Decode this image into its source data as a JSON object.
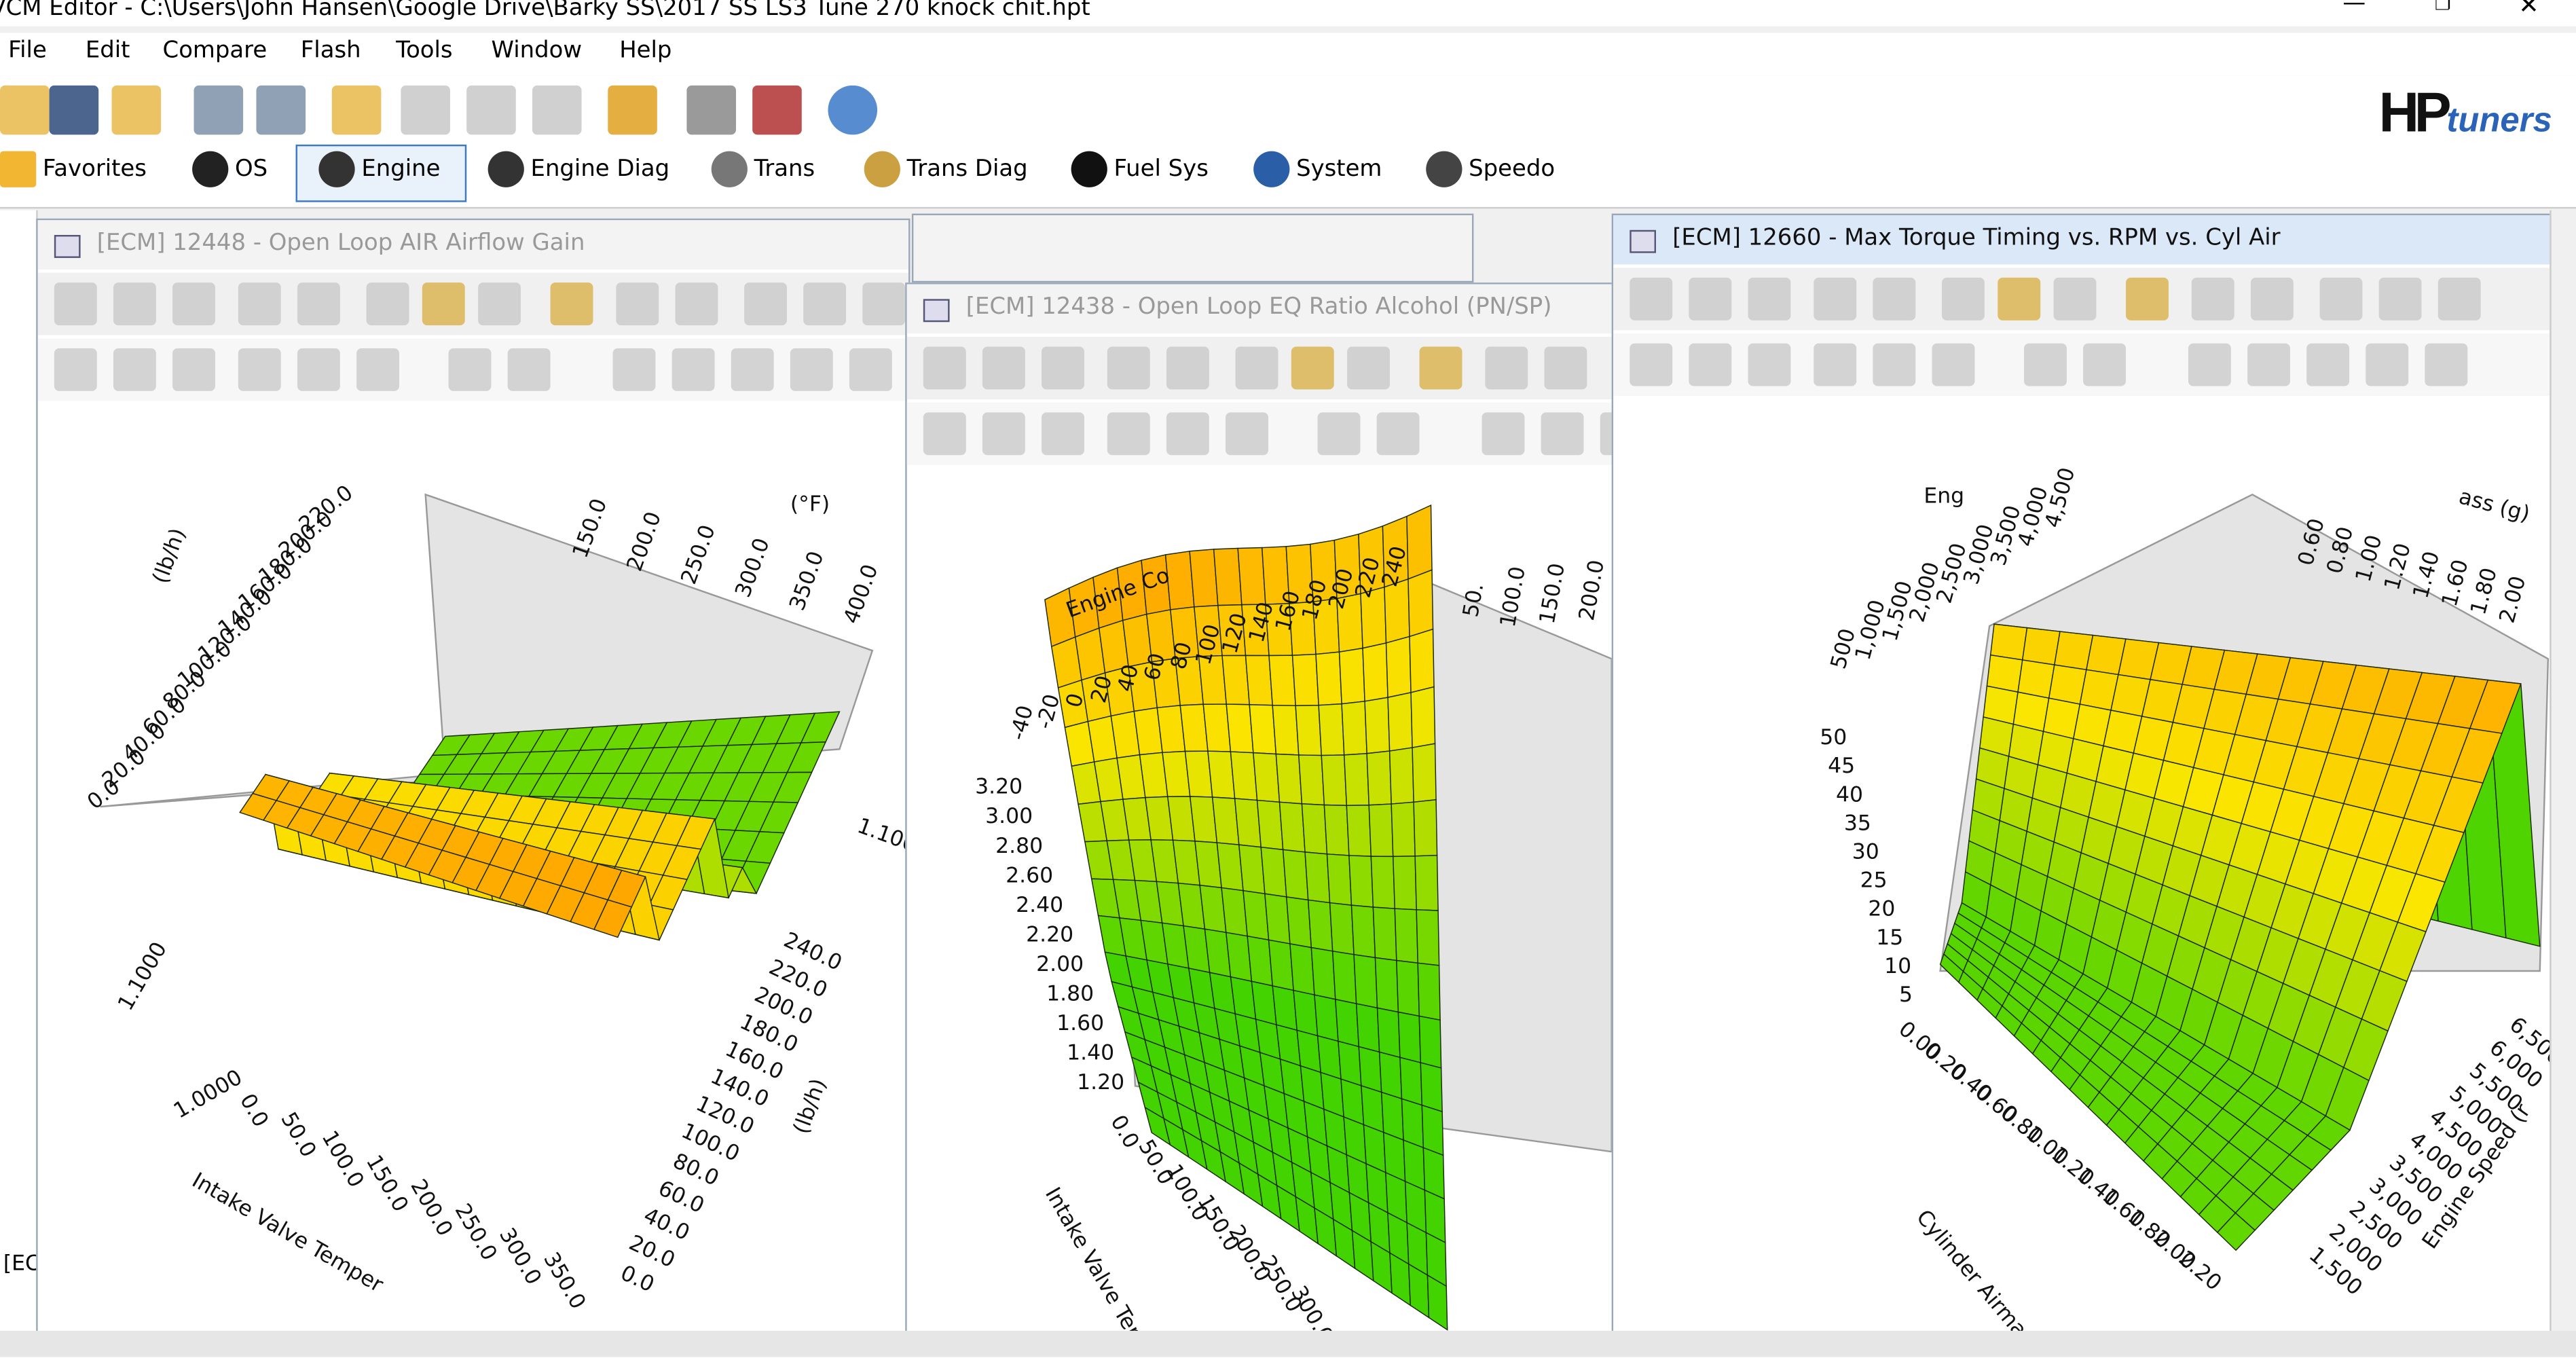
{
  "window": {
    "title": "VCM Editor - C:\\Users\\John Hansen\\Google Drive\\Barky SS\\2017 SS LS3 Tune 270 knock chit.hpt"
  },
  "menu": [
    "File",
    "Edit",
    "Compare",
    "Flash",
    "Tools",
    "Window",
    "Help"
  ],
  "logo": {
    "brand": "HP",
    "suffix": "tuners"
  },
  "nav": [
    "Favorites",
    "OS",
    "Engine",
    "Engine Diag",
    "Trans",
    "Trans Diag",
    "Fuel Sys",
    "System",
    "Speedo"
  ],
  "side_label": "[EC",
  "windows": [
    {
      "title": "[ECM] 12448 - Open Loop AIR Airflow Gain",
      "axis_labels": [
        "(lb/h)",
        "Intake Valve Temper",
        "(°F)",
        "(lb/h)",
        "1.1000",
        "1.0000",
        "1.1000"
      ],
      "ticks": [
        [
          "220.0",
          "200.0",
          "180.0",
          "160.0",
          "140.0",
          "120.0",
          "100.0",
          "80.0",
          "60.0",
          "40.0",
          "20.0",
          "0.0"
        ],
        [
          "150.0",
          "200.0",
          "250.0",
          "300.0",
          "350.0",
          "400.0"
        ],
        [
          "0.0",
          "50.0",
          "100.0",
          "150.0",
          "200.0",
          "250.0",
          "300.0",
          "350.0"
        ],
        [
          "240.0",
          "220.0",
          "200.0",
          "180.0",
          "160.0",
          "140.0",
          "120.0",
          "100.0",
          "80.0",
          "60.0",
          "40.0",
          "20.0",
          "0.0"
        ]
      ]
    },
    {
      "title": "[ECM] 12438 - Open Loop EQ Ratio Alcohol (PN/SP)",
      "axis_labels": [
        "Engine Co",
        "Intake Valve Tempe"
      ],
      "ticks": [
        [
          "3.20",
          "3.00",
          "2.80",
          "2.60",
          "2.40",
          "2.20",
          "2.00",
          "1.80",
          "1.60",
          "1.40",
          "1.20"
        ],
        [
          "-40",
          "-20",
          "0",
          "20",
          "40",
          "60",
          "80",
          "100",
          "120",
          "140",
          "160",
          "180",
          "200",
          "220",
          "240"
        ],
        [
          "0.0",
          "50.0",
          "100.0",
          "150.0",
          "200.0",
          "250.0",
          "300.0"
        ],
        [
          "50.",
          "100.0",
          "150.0",
          "200.0"
        ]
      ]
    },
    {
      "title": "[ECM] 12660 - Max Torque Timing vs. RPM vs. Cyl Air",
      "axis_labels": [
        "Cylinder Airmass (g",
        "Engine Speed (r",
        "Eng",
        "ass (g)"
      ],
      "ticks": [
        [
          "50",
          "45",
          "40",
          "35",
          "30",
          "25",
          "20",
          "15",
          "10",
          "5"
        ],
        [
          "0.00",
          "0.20",
          "0.40",
          "0.60",
          "0.80",
          "1.00",
          "1.20",
          "1.40",
          "1.60",
          "1.80",
          "2.00",
          "2.20"
        ],
        [
          "500",
          "1,000",
          "1,500",
          "2,000",
          "2,500",
          "3,000",
          "3,500",
          "4,000",
          "4,500"
        ],
        [
          "6,500",
          "6,000",
          "5,500",
          "5,000",
          "4,500",
          "4,000",
          "3,500",
          "3,000",
          "2,500",
          "2,000",
          "1,500"
        ],
        [
          "0.60",
          "0.80",
          "1.00",
          "1.20",
          "1.40",
          "1.60",
          "1.80",
          "2.00"
        ]
      ]
    }
  ]
}
